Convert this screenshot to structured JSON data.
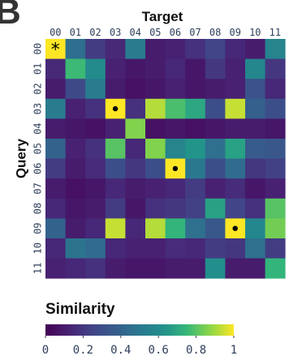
{
  "panel_label": "B",
  "chart_data": {
    "type": "heatmap",
    "title": "",
    "xlabel": "Target",
    "ylabel": "Query",
    "x_ticks": [
      "00",
      "01",
      "02",
      "03",
      "04",
      "05",
      "06",
      "07",
      "08",
      "09",
      "10",
      "11"
    ],
    "y_ticks": [
      "00",
      "01",
      "02",
      "03",
      "04",
      "05",
      "06",
      "07",
      "08",
      "09",
      "10",
      "11"
    ],
    "values": [
      [
        1.0,
        0.45,
        0.22,
        0.15,
        0.52,
        0.1,
        0.12,
        0.18,
        0.26,
        0.14,
        0.1,
        0.56
      ],
      [
        0.15,
        0.76,
        0.6,
        0.12,
        0.08,
        0.1,
        0.14,
        0.08,
        0.2,
        0.12,
        0.58,
        0.2
      ],
      [
        0.1,
        0.28,
        0.52,
        0.1,
        0.06,
        0.08,
        0.12,
        0.08,
        0.1,
        0.12,
        0.32,
        0.14
      ],
      [
        0.52,
        0.12,
        0.18,
        1.0,
        0.18,
        0.92,
        0.78,
        0.7,
        0.3,
        0.94,
        0.38,
        0.3
      ],
      [
        0.1,
        0.08,
        0.06,
        0.12,
        0.86,
        0.06,
        0.08,
        0.06,
        0.08,
        0.1,
        0.1,
        0.08
      ],
      [
        0.4,
        0.12,
        0.18,
        0.8,
        0.14,
        0.86,
        0.56,
        0.64,
        0.46,
        0.68,
        0.36,
        0.34
      ],
      [
        0.22,
        0.1,
        0.16,
        0.3,
        0.2,
        0.3,
        1.0,
        0.5,
        0.3,
        0.44,
        0.2,
        0.24
      ],
      [
        0.1,
        0.06,
        0.08,
        0.14,
        0.1,
        0.12,
        0.14,
        0.22,
        0.12,
        0.16,
        0.08,
        0.12
      ],
      [
        0.14,
        0.08,
        0.1,
        0.22,
        0.08,
        0.18,
        0.2,
        0.24,
        0.68,
        0.26,
        0.18,
        0.8
      ],
      [
        0.4,
        0.1,
        0.14,
        0.94,
        0.14,
        0.92,
        0.74,
        0.46,
        0.34,
        1.0,
        0.58,
        0.84
      ],
      [
        0.14,
        0.48,
        0.44,
        0.14,
        0.12,
        0.12,
        0.16,
        0.14,
        0.22,
        0.2,
        0.46,
        0.22
      ],
      [
        0.12,
        0.14,
        0.18,
        0.1,
        0.08,
        0.08,
        0.1,
        0.1,
        0.62,
        0.1,
        0.1,
        0.74
      ]
    ],
    "self_match_markers": [
      {
        "row": 0,
        "col": 0,
        "symbol": "*"
      },
      {
        "row": 3,
        "col": 3,
        "symbol": "•"
      },
      {
        "row": 6,
        "col": 6,
        "symbol": "•"
      },
      {
        "row": 9,
        "col": 9,
        "symbol": "•"
      }
    ],
    "colorbar": {
      "label": "Similarity",
      "ticks": [
        "0",
        "0.2",
        "0.4",
        "0.6",
        "0.8",
        "1"
      ],
      "range": [
        0,
        1
      ],
      "colormap": "viridis"
    }
  }
}
